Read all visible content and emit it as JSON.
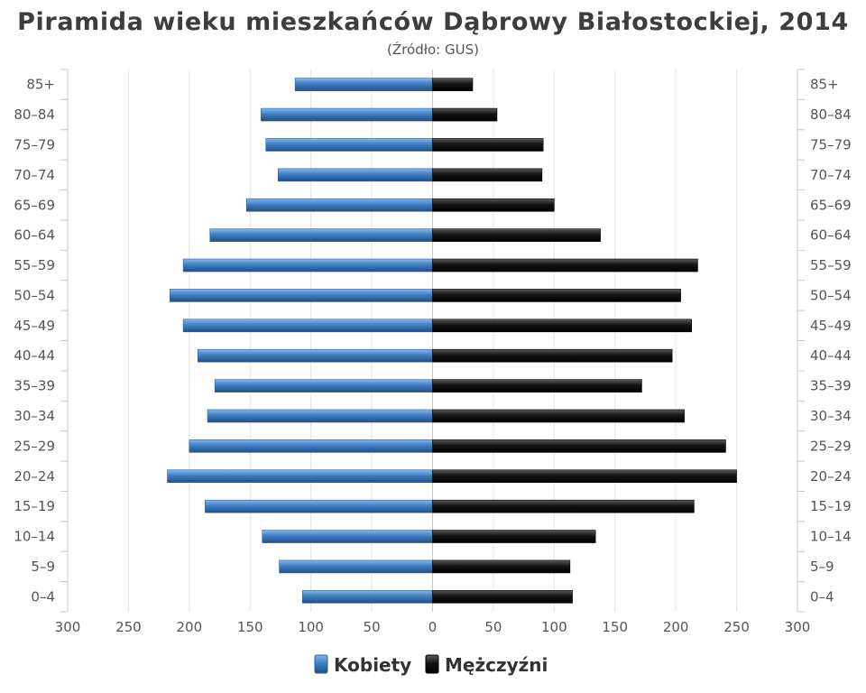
{
  "chart_data": {
    "type": "bar",
    "orientation": "horizontal",
    "title": "Piramida wieku mieszkańców Dąbrowy Białostockiej, 2014",
    "subtitle": "(Źródło: GUS)",
    "categories": [
      "85+",
      "80-84",
      "75-79",
      "70-74",
      "65-69",
      "60-64",
      "55-59",
      "50-54",
      "45-49",
      "40-44",
      "35-39",
      "30-34",
      "25-29",
      "20-24",
      "15-19",
      "10-14",
      "5-9",
      "0-4"
    ],
    "series": [
      {
        "name": "Kobiety",
        "side": "left",
        "color": "#3a78bd",
        "values": [
          113,
          141,
          137,
          127,
          153,
          183,
          205,
          216,
          205,
          193,
          179,
          185,
          200,
          218,
          187,
          140,
          126,
          107
        ]
      },
      {
        "name": "Mężczyźni",
        "side": "right",
        "color": "#111111",
        "values": [
          33,
          53,
          91,
          90,
          100,
          138,
          218,
          204,
          213,
          197,
          172,
          207,
          241,
          250,
          215,
          134,
          113,
          115
        ]
      }
    ],
    "xlim": [
      -300,
      300
    ],
    "xticks": [
      "300",
      "250",
      "200",
      "150",
      "100",
      "50",
      "0",
      "50",
      "100",
      "150",
      "200",
      "250",
      "300"
    ],
    "grid": true,
    "legend_position": "bottom-center"
  }
}
